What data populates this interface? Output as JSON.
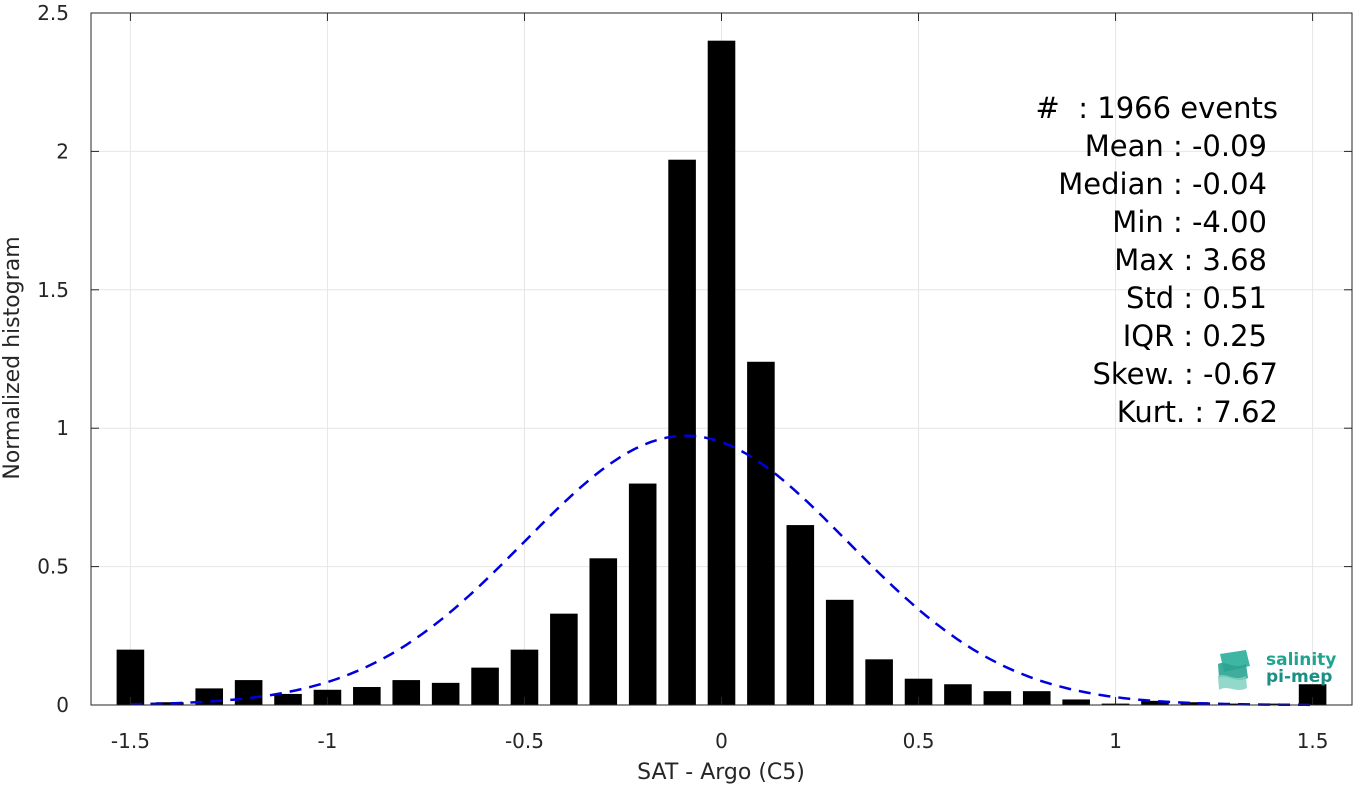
{
  "chart_data": {
    "type": "bar",
    "xlabel": "SAT - Argo (C5)",
    "ylabel": "Normalized histogram",
    "xlim": [
      -1.6,
      1.6
    ],
    "ylim": [
      0,
      2.5
    ],
    "xticks": [
      "-1.5",
      "-1",
      "-0.5",
      "0",
      "0.5",
      "1",
      "1.5"
    ],
    "xtick_values": [
      -1.5,
      -1,
      -0.5,
      0,
      0.5,
      1,
      1.5
    ],
    "yticks": [
      "0",
      "0.5",
      "1",
      "1.5",
      "2",
      "2.5"
    ],
    "ytick_values": [
      0,
      0.5,
      1,
      1.5,
      2,
      2.5
    ],
    "grid": true,
    "bar_color": "#000000",
    "bin_width": 0.1,
    "bars": {
      "x": [
        -1.5,
        -1.4,
        -1.3,
        -1.2,
        -1.1,
        -1.0,
        -0.9,
        -0.8,
        -0.7,
        -0.6,
        -0.5,
        -0.4,
        -0.3,
        -0.2,
        -0.1,
        0.0,
        0.1,
        0.2,
        0.3,
        0.4,
        0.5,
        0.6,
        0.7,
        0.8,
        0.9,
        1.0,
        1.1,
        1.2,
        1.3,
        1.4,
        1.5
      ],
      "values": [
        0.2,
        0.01,
        0.06,
        0.09,
        0.04,
        0.055,
        0.065,
        0.09,
        0.08,
        0.135,
        0.2,
        0.33,
        0.53,
        0.8,
        1.97,
        2.4,
        1.24,
        0.65,
        0.38,
        0.165,
        0.095,
        0.075,
        0.05,
        0.05,
        0.02,
        0.005,
        0.015,
        0.01,
        0.005,
        0.005,
        0.075
      ]
    },
    "fit": {
      "type": "normal",
      "style": "dashed",
      "color": "#0000dd",
      "mean": -0.09,
      "std": 0.41
    },
    "annotations": [
      {
        "label": "#  : 1966 events"
      },
      {
        "label": "Mean : -0.09"
      },
      {
        "label": "Median : -0.04"
      },
      {
        "label": "Min : -4.00"
      },
      {
        "label": "Max : 3.68"
      },
      {
        "label": "Std : 0.51"
      },
      {
        "label": "IQR : 0.25"
      },
      {
        "label": "Skew. : -0.67"
      },
      {
        "label": "Kurt. : 7.62"
      }
    ]
  },
  "logo": {
    "line1": "salinity",
    "line2": "pi-mep",
    "color": "#1a9a8c"
  }
}
